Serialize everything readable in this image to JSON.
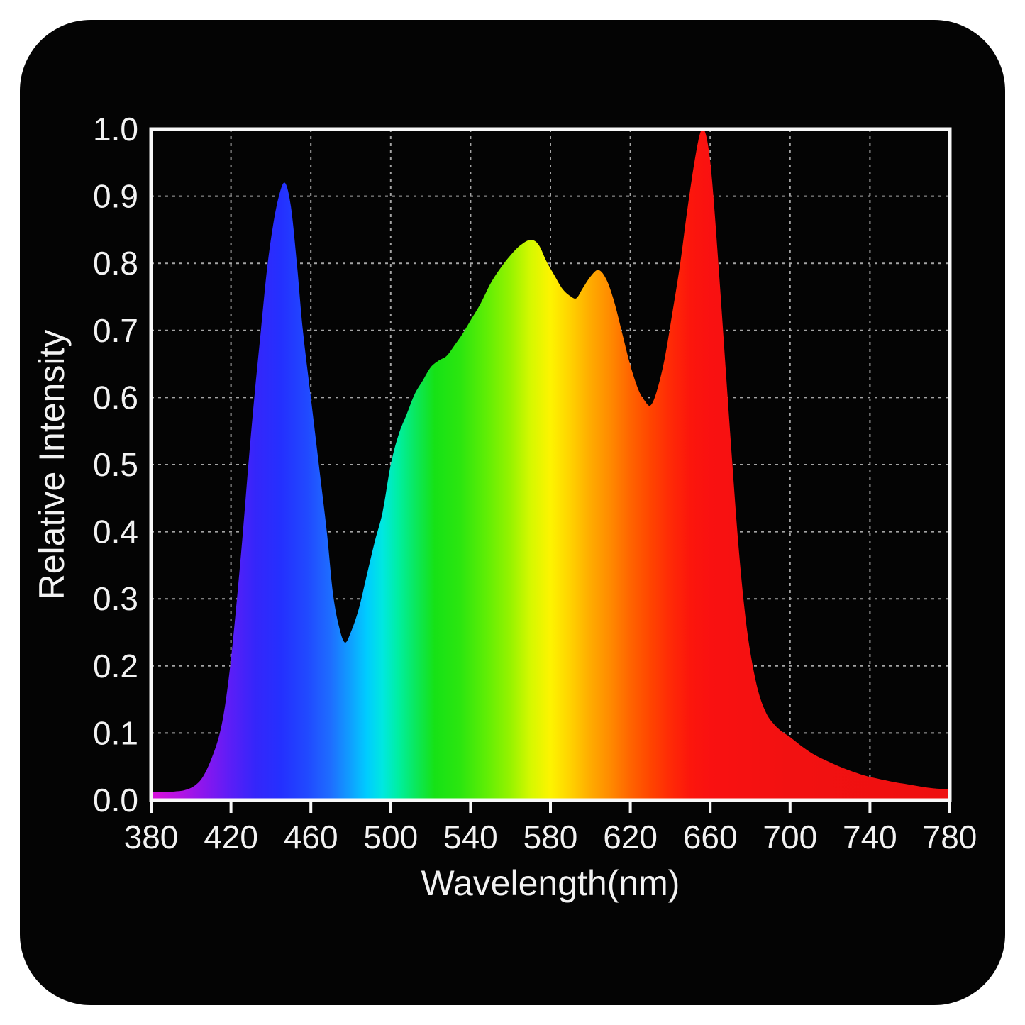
{
  "figure": {
    "page_background": "#ffffff",
    "card_background": "#040404",
    "text_color": "#f2f2f2",
    "border_color": "#f8f8f8",
    "grid_color": "#cccccc"
  },
  "chart_data": {
    "type": "area",
    "title": "",
    "xlabel": "Wavelength(nm)",
    "ylabel": "Relative Intensity",
    "xlim": [
      380,
      780
    ],
    "ylim": [
      0,
      1
    ],
    "grid": "dashed interior gridlines",
    "legend": "none",
    "series_name": "led-spectrum-relative-intensity",
    "x_ticks": [
      {
        "value": 380,
        "label": "380"
      },
      {
        "value": 420,
        "label": "420"
      },
      {
        "value": 460,
        "label": "460"
      },
      {
        "value": 500,
        "label": "500"
      },
      {
        "value": 540,
        "label": "540"
      },
      {
        "value": 580,
        "label": "580"
      },
      {
        "value": 620,
        "label": "620"
      },
      {
        "value": 660,
        "label": "660"
      },
      {
        "value": 700,
        "label": "700"
      },
      {
        "value": 740,
        "label": "740"
      },
      {
        "value": 780,
        "label": "780"
      }
    ],
    "y_ticks": [
      {
        "value": 0.0,
        "label": "0.0"
      },
      {
        "value": 0.1,
        "label": "0.1"
      },
      {
        "value": 0.2,
        "label": "0.2"
      },
      {
        "value": 0.3,
        "label": "0.3"
      },
      {
        "value": 0.4,
        "label": "0.4"
      },
      {
        "value": 0.5,
        "label": "0.5"
      },
      {
        "value": 0.6,
        "label": "0.6"
      },
      {
        "value": 0.7,
        "label": "0.7"
      },
      {
        "value": 0.8,
        "label": "0.8"
      },
      {
        "value": 0.9,
        "label": "0.9"
      },
      {
        "value": 1.0,
        "label": "1.0"
      }
    ],
    "key_features": {
      "blue_peak": {
        "wavelength": 447,
        "intensity": 0.92
      },
      "blue_green_valley": {
        "wavelength": 477,
        "intensity": 0.235
      },
      "yellow_peak": {
        "wavelength": 570,
        "intensity": 0.835
      },
      "yellow_orange_dip": {
        "wavelength": 593,
        "intensity": 0.748
      },
      "orange_peak": {
        "wavelength": 604,
        "intensity": 0.79
      },
      "orange_red_valley": {
        "wavelength": 630,
        "intensity": 0.588
      },
      "red_peak": {
        "wavelength": 656,
        "intensity": 1.0
      }
    },
    "points": [
      [
        380,
        0.012
      ],
      [
        386,
        0.012
      ],
      [
        392,
        0.013
      ],
      [
        397,
        0.015
      ],
      [
        402,
        0.022
      ],
      [
        406,
        0.035
      ],
      [
        410,
        0.06
      ],
      [
        414,
        0.095
      ],
      [
        417,
        0.14
      ],
      [
        420,
        0.21
      ],
      [
        423,
        0.3
      ],
      [
        426,
        0.4
      ],
      [
        429,
        0.51
      ],
      [
        432,
        0.61
      ],
      [
        435,
        0.7
      ],
      [
        438,
        0.79
      ],
      [
        441,
        0.855
      ],
      [
        444,
        0.9
      ],
      [
        447,
        0.92
      ],
      [
        450,
        0.885
      ],
      [
        453,
        0.8
      ],
      [
        456,
        0.7
      ],
      [
        460,
        0.6
      ],
      [
        464,
        0.5
      ],
      [
        468,
        0.4
      ],
      [
        471,
        0.31
      ],
      [
        474,
        0.26
      ],
      [
        477,
        0.235
      ],
      [
        480,
        0.25
      ],
      [
        484,
        0.285
      ],
      [
        488,
        0.335
      ],
      [
        492,
        0.385
      ],
      [
        496,
        0.43
      ],
      [
        500,
        0.5
      ],
      [
        504,
        0.545
      ],
      [
        508,
        0.575
      ],
      [
        512,
        0.605
      ],
      [
        516,
        0.625
      ],
      [
        520,
        0.645
      ],
      [
        524,
        0.655
      ],
      [
        528,
        0.662
      ],
      [
        532,
        0.678
      ],
      [
        536,
        0.695
      ],
      [
        540,
        0.715
      ],
      [
        545,
        0.74
      ],
      [
        550,
        0.77
      ],
      [
        555,
        0.793
      ],
      [
        560,
        0.812
      ],
      [
        565,
        0.827
      ],
      [
        570,
        0.835
      ],
      [
        574,
        0.828
      ],
      [
        578,
        0.803
      ],
      [
        582,
        0.782
      ],
      [
        586,
        0.762
      ],
      [
        590,
        0.751
      ],
      [
        593,
        0.748
      ],
      [
        596,
        0.762
      ],
      [
        600,
        0.78
      ],
      [
        604,
        0.79
      ],
      [
        608,
        0.776
      ],
      [
        612,
        0.742
      ],
      [
        616,
        0.695
      ],
      [
        620,
        0.648
      ],
      [
        624,
        0.612
      ],
      [
        627,
        0.596
      ],
      [
        630,
        0.588
      ],
      [
        633,
        0.607
      ],
      [
        637,
        0.655
      ],
      [
        641,
        0.725
      ],
      [
        645,
        0.8
      ],
      [
        648,
        0.868
      ],
      [
        651,
        0.93
      ],
      [
        654,
        0.982
      ],
      [
        656,
        1.0
      ],
      [
        658,
        0.99
      ],
      [
        660,
        0.952
      ],
      [
        662,
        0.885
      ],
      [
        665,
        0.762
      ],
      [
        668,
        0.632
      ],
      [
        671,
        0.505
      ],
      [
        674,
        0.385
      ],
      [
        677,
        0.29
      ],
      [
        680,
        0.222
      ],
      [
        684,
        0.163
      ],
      [
        688,
        0.13
      ],
      [
        692,
        0.113
      ],
      [
        696,
        0.102
      ],
      [
        700,
        0.094
      ],
      [
        706,
        0.08
      ],
      [
        712,
        0.068
      ],
      [
        718,
        0.059
      ],
      [
        724,
        0.051
      ],
      [
        730,
        0.044
      ],
      [
        737,
        0.037
      ],
      [
        744,
        0.032
      ],
      [
        752,
        0.027
      ],
      [
        760,
        0.023
      ],
      [
        768,
        0.019
      ],
      [
        774,
        0.017
      ],
      [
        780,
        0.016
      ]
    ],
    "gradient_stops": [
      {
        "wl": 380,
        "color": "#d911d9"
      },
      {
        "wl": 394,
        "color": "#b513e3"
      },
      {
        "wl": 408,
        "color": "#8517ef"
      },
      {
        "wl": 420,
        "color": "#5a1ef7"
      },
      {
        "wl": 432,
        "color": "#3526fa"
      },
      {
        "wl": 445,
        "color": "#2430ff"
      },
      {
        "wl": 458,
        "color": "#2149ff"
      },
      {
        "wl": 470,
        "color": "#1e6eff"
      },
      {
        "wl": 480,
        "color": "#0fa0ff"
      },
      {
        "wl": 488,
        "color": "#00ccff"
      },
      {
        "wl": 496,
        "color": "#00e8e0"
      },
      {
        "wl": 504,
        "color": "#00efa0"
      },
      {
        "wl": 512,
        "color": "#0ae860"
      },
      {
        "wl": 522,
        "color": "#16e216"
      },
      {
        "wl": 535,
        "color": "#2ce60f"
      },
      {
        "wl": 548,
        "color": "#5fee05"
      },
      {
        "wl": 560,
        "color": "#97f300"
      },
      {
        "wl": 570,
        "color": "#d5f800"
      },
      {
        "wl": 580,
        "color": "#fdf400"
      },
      {
        "wl": 590,
        "color": "#ffd200"
      },
      {
        "wl": 600,
        "color": "#ffab00"
      },
      {
        "wl": 610,
        "color": "#ff8a00"
      },
      {
        "wl": 620,
        "color": "#ff6400"
      },
      {
        "wl": 630,
        "color": "#ff4500"
      },
      {
        "wl": 640,
        "color": "#ff2a06"
      },
      {
        "wl": 650,
        "color": "#fc160c"
      },
      {
        "wl": 660,
        "color": "#f91111"
      },
      {
        "wl": 700,
        "color": "#f21111"
      },
      {
        "wl": 780,
        "color": "#ee1010"
      }
    ]
  }
}
